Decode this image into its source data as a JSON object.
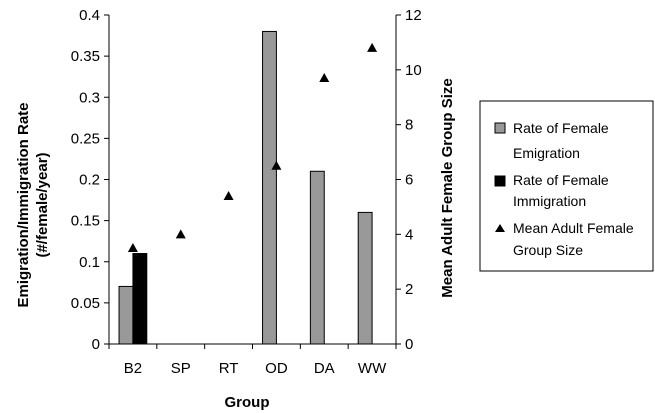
{
  "chart_data": {
    "type": "bar",
    "xlabel": "Group",
    "ylabel_left_lines": [
      "Emigration/Immigration Rate",
      "(#/female/year)"
    ],
    "ylabel_right": "Mean Adult Female Group Size",
    "categories": [
      "B2",
      "SP",
      "RT",
      "OD",
      "DA",
      "WW"
    ],
    "y_left": {
      "lim": [
        0,
        0.4
      ],
      "ticks": [
        0,
        0.05,
        0.1,
        0.15,
        0.2,
        0.25,
        0.3,
        0.35,
        0.4
      ],
      "tick_labels": [
        "0",
        "0.05",
        "0.1",
        "0.15",
        "0.2",
        "0.25",
        "0.3",
        "0.35",
        "0.4"
      ]
    },
    "y_right": {
      "lim": [
        0,
        12
      ],
      "ticks": [
        0,
        2,
        4,
        6,
        8,
        10,
        12
      ],
      "tick_labels": [
        "0",
        "2",
        "4",
        "6",
        "8",
        "10",
        "12"
      ]
    },
    "grid": false,
    "legend_position": "right",
    "series": [
      {
        "name_lines": [
          "Rate of Female",
          "Emigration"
        ],
        "kind": "bar",
        "axis": "left",
        "color": "#999999",
        "values": [
          0.07,
          0,
          0,
          0.38,
          0.21,
          0.16
        ]
      },
      {
        "name_lines": [
          "Rate of Female",
          "Immigration"
        ],
        "kind": "bar",
        "axis": "left",
        "color": "#000000",
        "values": [
          0.11,
          0,
          0,
          0,
          0,
          0
        ]
      },
      {
        "name_lines": [
          "Mean Adult Female",
          "Group Size"
        ],
        "kind": "marker",
        "marker": "triangle",
        "axis": "right",
        "color": "#000000",
        "values": [
          3.5,
          4.0,
          5.4,
          6.5,
          9.7,
          10.8
        ]
      }
    ]
  }
}
